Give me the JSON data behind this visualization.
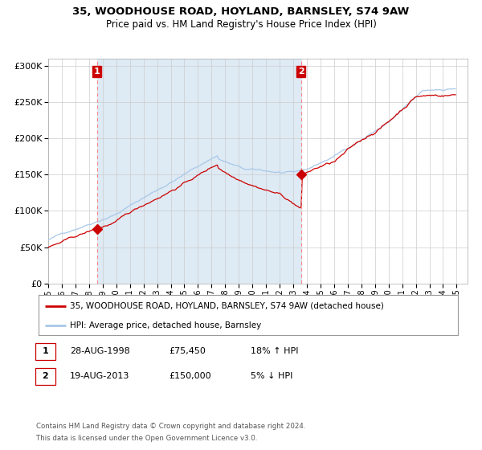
{
  "title": "35, WOODHOUSE ROAD, HOYLAND, BARNSLEY, S74 9AW",
  "subtitle": "Price paid vs. HM Land Registry's House Price Index (HPI)",
  "sale1_date": "28-AUG-1998",
  "sale1_price": 75450,
  "sale1_hpi_pct": "18% ↑ HPI",
  "sale2_date": "19-AUG-2013",
  "sale2_price": 150000,
  "sale2_hpi_pct": "5% ↓ HPI",
  "legend_line1": "35, WOODHOUSE ROAD, HOYLAND, BARNSLEY, S74 9AW (detached house)",
  "legend_line2": "HPI: Average price, detached house, Barnsley",
  "footer1": "Contains HM Land Registry data © Crown copyright and database right 2024.",
  "footer2": "This data is licensed under the Open Government Licence v3.0.",
  "hpi_color": "#a8c8e8",
  "price_color": "#cc0000",
  "marker_color": "#cc0000",
  "vline_color": "#ff8888",
  "bg_shaded_color": "#deeaf4",
  "ylim": [
    0,
    310000
  ],
  "yticks": [
    0,
    50000,
    100000,
    150000,
    200000,
    250000,
    300000
  ],
  "ylabel_fmt": [
    "£0",
    "£50K",
    "£100K",
    "£150K",
    "£200K",
    "£250K",
    "£300K"
  ]
}
